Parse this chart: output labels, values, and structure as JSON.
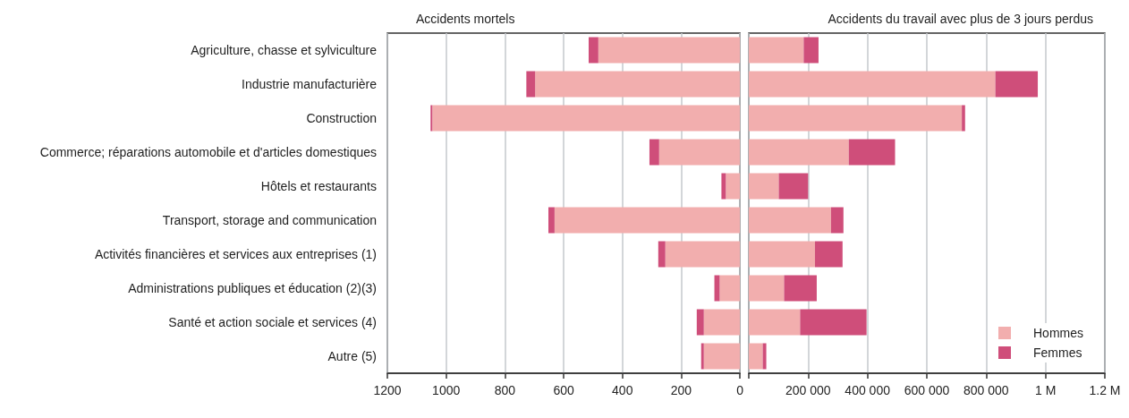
{
  "chart_data": [
    {
      "type": "bar",
      "orientation": "horizontal",
      "stacked": true,
      "title": "Accidents mortels",
      "categories": [
        "Agriculture, chasse et sylviculture",
        "Industrie manufacturière",
        "Construction",
        "Commerce; réparations automobile et d'articles domestiques",
        "Hôtels et restaurants",
        "Transport, storage and communication",
        "Activités financières et services aux entreprises (1)",
        "Administrations publiques et éducation (2)(3)",
        "Santé et action sociale et services (4)",
        "Autre (5)"
      ],
      "series": [
        {
          "color": "#f2aeae",
          "values": [
            482,
            697,
            1047,
            275,
            48,
            631,
            254,
            69,
            123,
            123
          ]
        },
        {
          "color": "#cf4e7a",
          "values": [
            33,
            30,
            6,
            33,
            15,
            21,
            24,
            18,
            24,
            9
          ]
        }
      ],
      "xlim": [
        1200,
        0
      ],
      "xticks": [
        1200,
        1000,
        800,
        600,
        400,
        200,
        0
      ],
      "grid": "x",
      "legend": false
    },
    {
      "type": "bar",
      "orientation": "horizontal",
      "stacked": true,
      "title": "Accidents du travail avec plus de 3 jours perdus",
      "categories": [
        null,
        null,
        null,
        null,
        null,
        null,
        null,
        null,
        null,
        null
      ],
      "series": [
        {
          "name": "Hommes",
          "color": "#f2aeae",
          "values": [
            185000,
            831000,
            718000,
            337000,
            101000,
            277000,
            223000,
            119000,
            173000,
            47000
          ]
        },
        {
          "name": "Femmes",
          "color": "#cf4e7a",
          "values": [
            50000,
            143000,
            11000,
            156000,
            99000,
            42000,
            93000,
            110000,
            224000,
            12000
          ]
        }
      ],
      "xlim": [
        0,
        1200000
      ],
      "xticks": [
        {
          "value": 0,
          "label": null
        },
        {
          "value": 200000,
          "label": "200 000"
        },
        {
          "value": 400000,
          "label": "400 000"
        },
        {
          "value": 600000,
          "label": "600 000"
        },
        {
          "value": 800000,
          "label": "800 000"
        },
        {
          "value": 1000000,
          "label": "1 M"
        },
        {
          "value": 1200000,
          "label": "1.2 M"
        }
      ],
      "grid": "x",
      "legend": "bottom right",
      "tick_labels": "x"
    }
  ]
}
